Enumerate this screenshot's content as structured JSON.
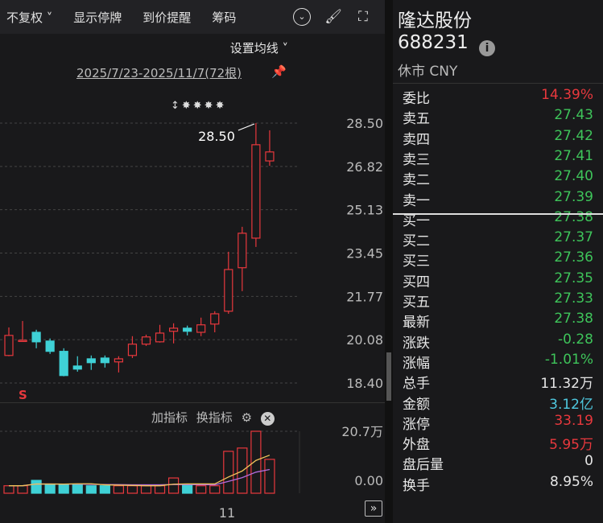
{
  "toolbar": {
    "adjust": "不复权 ˅",
    "suspend": "显示停牌",
    "alert": "到价提醒",
    "chips": "筹码"
  },
  "chart": {
    "ma_setting": "设置均线 ˅",
    "range": "2025/7/23-2025/11/7(72根)",
    "max_label": "28.50",
    "markers": "↕✸✸✸✸",
    "signal": "S",
    "price_ticks": [
      "28.50",
      "26.82",
      "25.13",
      "23.45",
      "21.77",
      "20.08",
      "18.40"
    ],
    "vol_ticks": [
      "20.7万",
      "0.00"
    ],
    "date_label": "11",
    "indicator_add": "加指标",
    "indicator_switch": "换指标",
    "colors": {
      "up": "#e8383d",
      "down": "#3fd1d6",
      "ma5": "#f2c45a",
      "ma10": "#b36bdc"
    }
  },
  "chart_data": {
    "type": "candlestick",
    "ylim": [
      18.4,
      28.5
    ],
    "ohlc": [
      [
        19.47,
        20.56,
        19.44,
        20.25
      ],
      [
        20.06,
        20.81,
        20.03,
        20.06
      ],
      [
        20.37,
        20.47,
        19.75,
        20.0
      ],
      [
        20.03,
        20.13,
        19.53,
        19.63
      ],
      [
        19.63,
        19.75,
        18.66,
        18.69
      ],
      [
        19.06,
        19.44,
        18.84,
        18.94
      ],
      [
        19.34,
        19.47,
        18.91,
        19.19
      ],
      [
        19.37,
        19.47,
        19.0,
        19.19
      ],
      [
        19.22,
        19.44,
        18.81,
        19.34
      ],
      [
        19.47,
        20.22,
        19.37,
        19.91
      ],
      [
        19.91,
        20.28,
        19.84,
        20.19
      ],
      [
        20.0,
        20.66,
        19.97,
        20.34
      ],
      [
        20.41,
        20.72,
        19.94,
        20.53
      ],
      [
        20.53,
        20.63,
        20.25,
        20.41
      ],
      [
        20.37,
        20.94,
        20.22,
        20.66
      ],
      [
        20.69,
        21.19,
        20.37,
        21.09
      ],
      [
        21.19,
        23.5,
        21.09,
        22.81
      ],
      [
        22.88,
        24.47,
        21.97,
        24.22
      ],
      [
        24.03,
        28.5,
        23.69,
        27.66
      ],
      [
        27.03,
        28.22,
        26.84,
        27.38
      ]
    ],
    "volume_unit": "万",
    "volume": [
      2.5,
      2.5,
      4.3,
      3.0,
      3.0,
      3.0,
      2.5,
      2.5,
      2.5,
      2.5,
      2.5,
      2.5,
      5.1,
      3.0,
      2.5,
      2.5,
      14.0,
      15.1,
      20.7,
      11.32
    ],
    "volume_ylim": [
      0,
      20.7
    ]
  },
  "quote": {
    "name": "隆达股份",
    "code": "688231",
    "status": "休市 CNY",
    "rows": [
      {
        "label": "委比",
        "value": "14.39%",
        "color": "#e8383d"
      },
      {
        "label": "卖五",
        "value": "27.43",
        "color": "#3ec45a"
      },
      {
        "label": "卖四",
        "value": "27.42",
        "color": "#3ec45a"
      },
      {
        "label": "卖三",
        "value": "27.41",
        "color": "#3ec45a"
      },
      {
        "label": "卖二",
        "value": "27.40",
        "color": "#3ec45a"
      },
      {
        "label": "卖一",
        "value": "27.39",
        "color": "#3ec45a"
      },
      {
        "label": "买一",
        "value": "27.38",
        "color": "#3ec45a"
      },
      {
        "label": "买二",
        "value": "27.37",
        "color": "#3ec45a"
      },
      {
        "label": "买三",
        "value": "27.36",
        "color": "#3ec45a"
      },
      {
        "label": "买四",
        "value": "27.35",
        "color": "#3ec45a"
      },
      {
        "label": "买五",
        "value": "27.33",
        "color": "#3ec45a"
      },
      {
        "label": "最新",
        "value": "27.38",
        "color": "#3ec45a"
      },
      {
        "label": "涨跌",
        "value": "-0.28",
        "color": "#3ec45a"
      },
      {
        "label": "涨幅",
        "value": "-1.01%",
        "color": "#3ec45a"
      },
      {
        "label": "总手",
        "value": "11.32万",
        "color": "#e6e6e6"
      },
      {
        "label": "金额",
        "value": "3.12亿",
        "color": "#4fc9e0"
      },
      {
        "label": "涨停",
        "value": "33.19",
        "color": "#e8383d"
      },
      {
        "label": "外盘",
        "value": "5.95万",
        "color": "#e8383d"
      },
      {
        "label": "盘后量",
        "value": "0",
        "color": "#e6e6e6"
      },
      {
        "label": "换手",
        "value": "8.95%",
        "color": "#e6e6e6"
      }
    ]
  }
}
